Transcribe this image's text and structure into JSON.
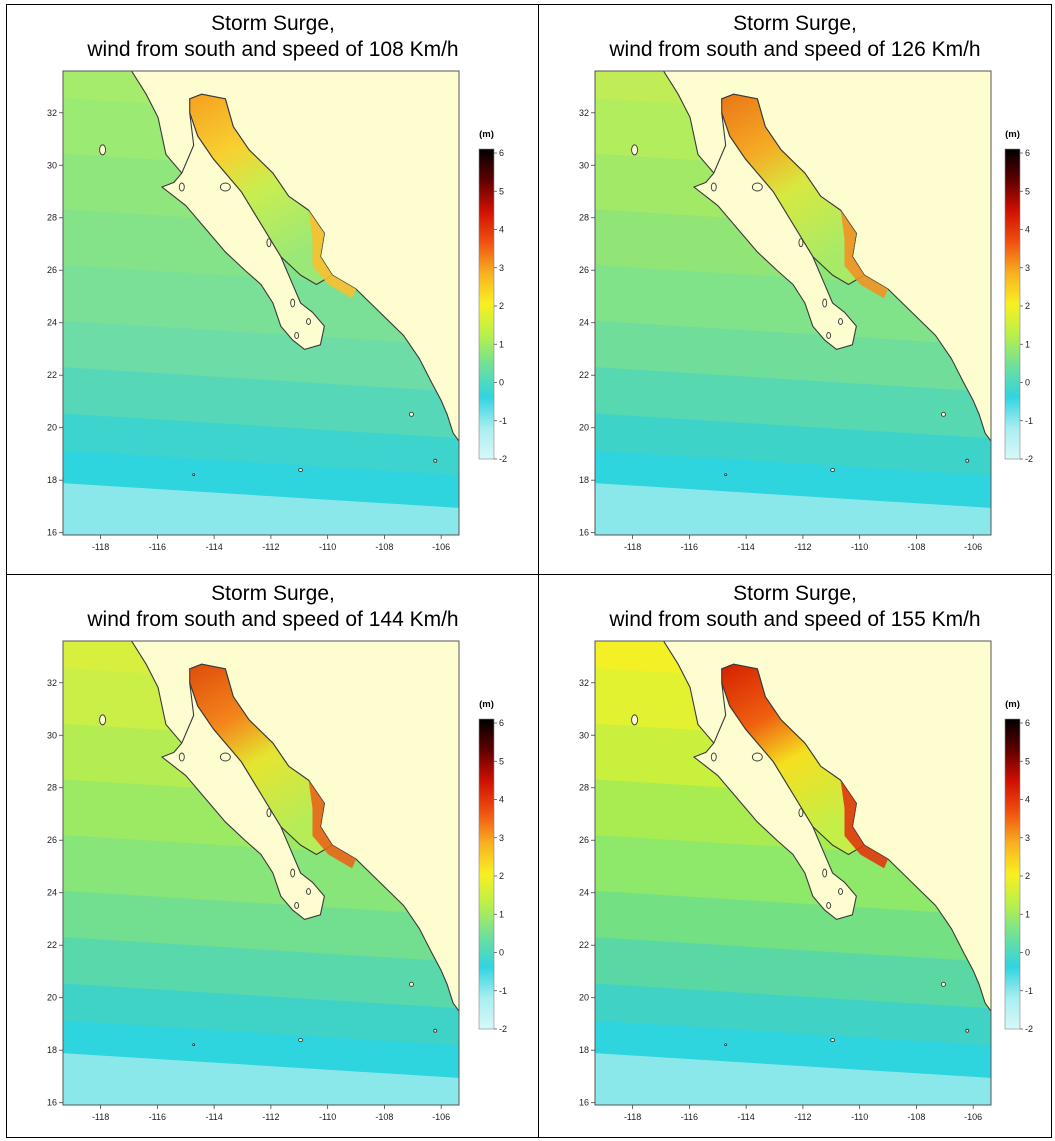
{
  "panels": [
    {
      "title_line1": "Storm Surge,",
      "title_line2": "wind from south and speed of 108 Km/h",
      "intensity": 0.0
    },
    {
      "title_line1": "Storm Surge,",
      "title_line2": "wind from south and speed of 126 Km/h",
      "intensity": 0.33
    },
    {
      "title_line1": "Storm Surge,",
      "title_line2": "wind from south and speed of 144 Km/h",
      "intensity": 0.66
    },
    {
      "title_line1": "Storm Surge,",
      "title_line2": "wind from south and speed of 155 Km/h",
      "intensity": 1.0
    }
  ],
  "axes": {
    "x_ticks": [
      "-118",
      "-116",
      "-114",
      "-112",
      "-110",
      "-108",
      "-106"
    ],
    "y_ticks": [
      "32",
      "30",
      "28",
      "26",
      "24",
      "22",
      "20",
      "18",
      "16"
    ]
  },
  "colorbar": {
    "unit": "(m)",
    "ticks": [
      "6",
      "5",
      "4",
      "3",
      "2",
      "1",
      "0",
      "-1",
      "-2"
    ]
  },
  "colors": {
    "land": "#fdfdd0",
    "coast": "#3a3a3a",
    "scale": [
      "#d8f8f8",
      "#a8eef0",
      "#30d4e0",
      "#6ee09a",
      "#b8f04a",
      "#f8f020",
      "#f8b020",
      "#f05010",
      "#d01000",
      "#600000",
      "#000000"
    ]
  }
}
